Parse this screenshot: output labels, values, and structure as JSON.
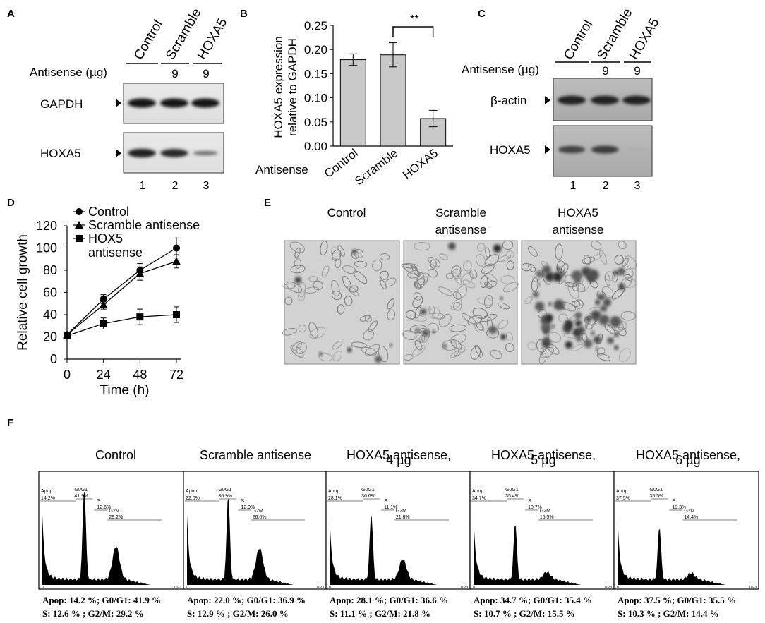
{
  "panels": {
    "a": {
      "letter": "A",
      "lanes": [
        "Control",
        "Scramble",
        "HOXA5"
      ],
      "antisense_label": "Antisense (µg)",
      "doses": [
        "",
        "9",
        "9"
      ],
      "bands": [
        "GAPDH",
        "HOXA5"
      ],
      "lane_numbers": [
        "1",
        "2",
        "3"
      ],
      "band_intensity": [
        [
          1.0,
          1.0,
          1.0
        ],
        [
          0.95,
          0.9,
          0.45
        ]
      ]
    },
    "b": {
      "letter": "B",
      "xgroup_label": "Antisense",
      "significance": "**"
    },
    "c": {
      "letter": "C",
      "lanes": [
        "Control",
        "Scramble",
        "HOXA5"
      ],
      "antisense_label": "Antisense (µg)",
      "doses": [
        "",
        "9",
        "9"
      ],
      "bands": [
        "β-actin",
        "HOXA5"
      ],
      "lane_numbers": [
        "1",
        "2",
        "3"
      ],
      "band_intensity": [
        [
          1.0,
          1.0,
          1.0
        ],
        [
          0.8,
          0.85,
          0.1
        ]
      ]
    },
    "d": {
      "letter": "D"
    },
    "e": {
      "letter": "E",
      "images": [
        {
          "line1": "Control",
          "line2": "",
          "kind": "sparse"
        },
        {
          "line1": "Scramble",
          "line2": "antisense",
          "kind": "medium"
        },
        {
          "line1": "HOXA5",
          "line2": "antisense",
          "kind": "clumps"
        }
      ]
    },
    "f": {
      "letter": "F",
      "histograms": [
        {
          "title1": "Control",
          "title2": "",
          "apop": "14.2 %",
          "g0g1": "41.9 %",
          "s": "12.6 %",
          "g2m": "29.2 %",
          "gate_apop": "14.2%",
          "gate_g0g1": "41.9%",
          "gate_s": "12.6%",
          "gate_g2m": "29.2%",
          "g1_height": 1.0,
          "g2_height": 0.36
        },
        {
          "title1": "Scramble antisense",
          "title2": "",
          "apop": "22.0 %",
          "g0g1": "36.9 %",
          "s": "12.9 %",
          "g2m": "26.0 %",
          "gate_apop": "22.0%",
          "gate_g0g1": "36.9%",
          "gate_s": "12.9%",
          "gate_g2m": "26.0%",
          "g1_height": 0.92,
          "g2_height": 0.34
        },
        {
          "title1": "HOXA5 antisense,",
          "title2": "4 µg",
          "apop": "28.1 %",
          "g0g1": "36.6 %",
          "s": "11.1 %",
          "g2m": "21.8 %",
          "gate_apop": "28.1%",
          "gate_g0g1": "36.6%",
          "gate_s": "11.1%",
          "gate_g2m": "21.8%",
          "g1_height": 0.72,
          "g2_height": 0.22
        },
        {
          "title1": "HOXA5 antisense,",
          "title2": "5 µg",
          "apop": "34.7 %",
          "g0g1": "35.4 %",
          "s": "10.7 %",
          "g2m": "15.5 %",
          "gate_apop": "34.7%",
          "gate_g0g1": "35.4%",
          "gate_s": "10.7%",
          "gate_g2m": "15.5%",
          "g1_height": 0.62,
          "g2_height": 0.08
        },
        {
          "title1": "HOXA5 antisense,",
          "title2": "6 µg",
          "apop": "37.5 %",
          "g0g1": "35.5 %",
          "s": "10.3 %",
          "g2m": "14.4 %",
          "gate_apop": "37.5%",
          "gate_g0g1": "35.5%",
          "gate_s": "10.3%",
          "gate_g2m": "14.4%",
          "g1_height": 0.58,
          "g2_height": 0.07
        }
      ],
      "gate_names": {
        "apop": "Apop",
        "g0g1": "G0G1",
        "s": "S",
        "g2m": "G2M"
      },
      "axis_min": "0",
      "axis_max": "1023",
      "stat_labels": {
        "apop": "Apop:",
        "g0g1": "G0/G1:",
        "s": "S:",
        "g2m": "G2/M:"
      }
    }
  },
  "chart_data": [
    {
      "type": "bar",
      "categories": [
        "Control",
        "Scramble",
        "HOXA5"
      ],
      "values": [
        0.179,
        0.189,
        0.057
      ],
      "errors": [
        0.012,
        0.025,
        0.017
      ],
      "bar_color": "#c8c8c8",
      "ylabel_line1": "HOXA5 expression",
      "ylabel_line2": "relative to GAPDH",
      "xlabel": "Antisense",
      "ylim": [
        0,
        0.25
      ],
      "yticks": [
        "0.00",
        "0.05",
        "0.10",
        "0.15",
        "0.20",
        "0.25"
      ]
    },
    {
      "type": "line",
      "x": [
        0,
        24,
        48,
        72
      ],
      "series": [
        {
          "name": "Control",
          "marker": "circle",
          "values": [
            22,
            54,
            80,
            100
          ],
          "errors": [
            2,
            4,
            6,
            9
          ]
        },
        {
          "name": "Scramble antisense",
          "marker": "triangle",
          "values": [
            22,
            49,
            77,
            88
          ],
          "errors": [
            2,
            4,
            6,
            6
          ]
        },
        {
          "name": "HOX5 antisense",
          "marker": "square",
          "values": [
            21,
            32,
            38,
            40
          ],
          "errors": [
            2,
            5,
            7,
            7
          ]
        }
      ],
      "legend": [
        "Control",
        "Scramble antisense",
        "HOX5",
        "antisense"
      ],
      "xlabel": "Time (h)",
      "ylabel": "Relative cell growth",
      "xticks": [
        "0",
        "24",
        "48",
        "72"
      ],
      "yticks": [
        "0",
        "20",
        "40",
        "60",
        "80",
        "100",
        "120"
      ],
      "ylim": [
        0,
        120
      ],
      "xlim": [
        0,
        72
      ]
    }
  ]
}
